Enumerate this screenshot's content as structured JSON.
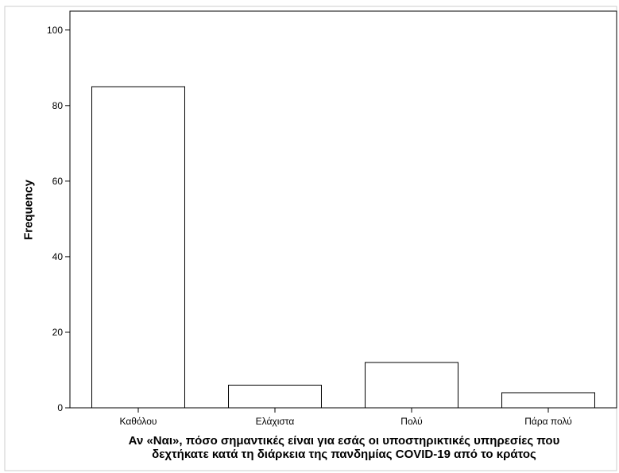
{
  "chart_data": {
    "type": "bar",
    "title": "",
    "categories": [
      "Καθόλου",
      "Ελάχιστα",
      "Πολύ",
      "Πάρα πολύ"
    ],
    "values": [
      85,
      6,
      12,
      4
    ],
    "xlabel": "Αν «Ναι», πόσο σημαντικές είναι για εσάς οι υποστηρικτικές υπηρεσίες που\nδεχτήκατε κατά τη διάρκεια της πανδημίας COVID-19 από το κράτος",
    "ylabel": "Frequency",
    "ylim": [
      0,
      105
    ],
    "yticks": [
      0,
      20,
      40,
      60,
      80,
      100
    ],
    "grid": false,
    "legend": "none",
    "colors": {
      "bar_fill": "#ffffff",
      "bar_stroke": "#000000",
      "axis": "#000000",
      "frame": "#cccccc"
    }
  }
}
